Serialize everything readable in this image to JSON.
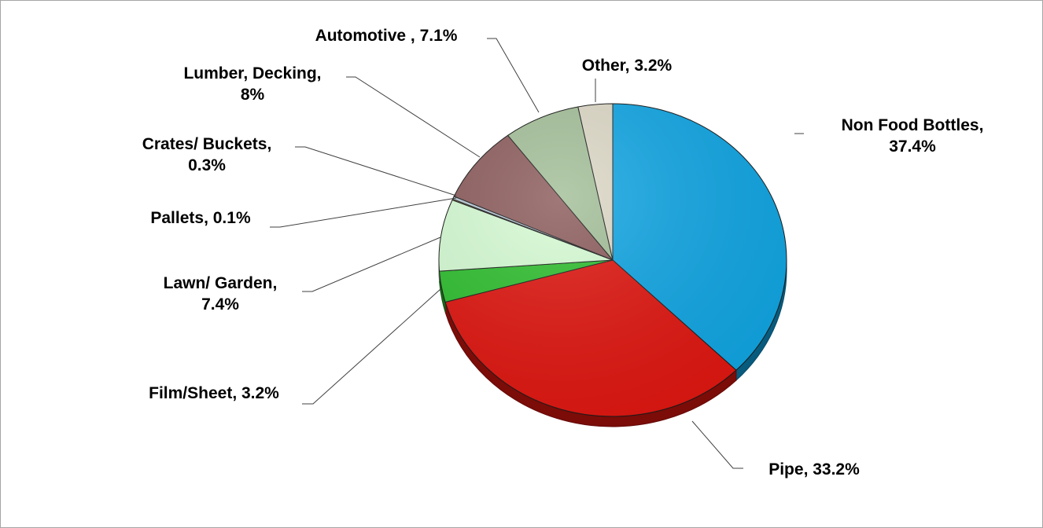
{
  "chart_data": {
    "type": "pie",
    "title": "",
    "labels": [
      "Non Food Bottles",
      "Pipe",
      "Film/Sheet",
      "Lawn/ Garden",
      "Pallets",
      "Crates/ Buckets",
      "Lumber, Decking",
      "Automotive",
      "Other"
    ],
    "values": [
      37.4,
      33.2,
      3.2,
      7.4,
      0.1,
      0.3,
      8,
      7.1,
      3.2
    ],
    "data_labels": [
      [
        "Non Food Bottles,",
        "37.4%"
      ],
      [
        "Pipe, 33.2%"
      ],
      [
        "Film/Sheet, 3.2%"
      ],
      [
        "Lawn/ Garden,",
        "7.4%"
      ],
      [
        "Pallets, 0.1%"
      ],
      [
        "Crates/ Buckets,",
        "0.3%"
      ],
      [
        "Lumber, Decking,",
        "8%"
      ],
      [
        "Automotive , 7.1%"
      ],
      [
        "Other, 3.2%"
      ]
    ],
    "colors": [
      "#0fa5e3",
      "#e0150f",
      "#2ebf2e",
      "#d6fcd4",
      "#f2e22a",
      "#b9c9d7",
      "#8c5b5b",
      "#a3bf98",
      "#ddd8c6"
    ],
    "start": "12 o'clock",
    "direction": "clockwise",
    "style": "3D tilted pie",
    "legend": "none"
  }
}
